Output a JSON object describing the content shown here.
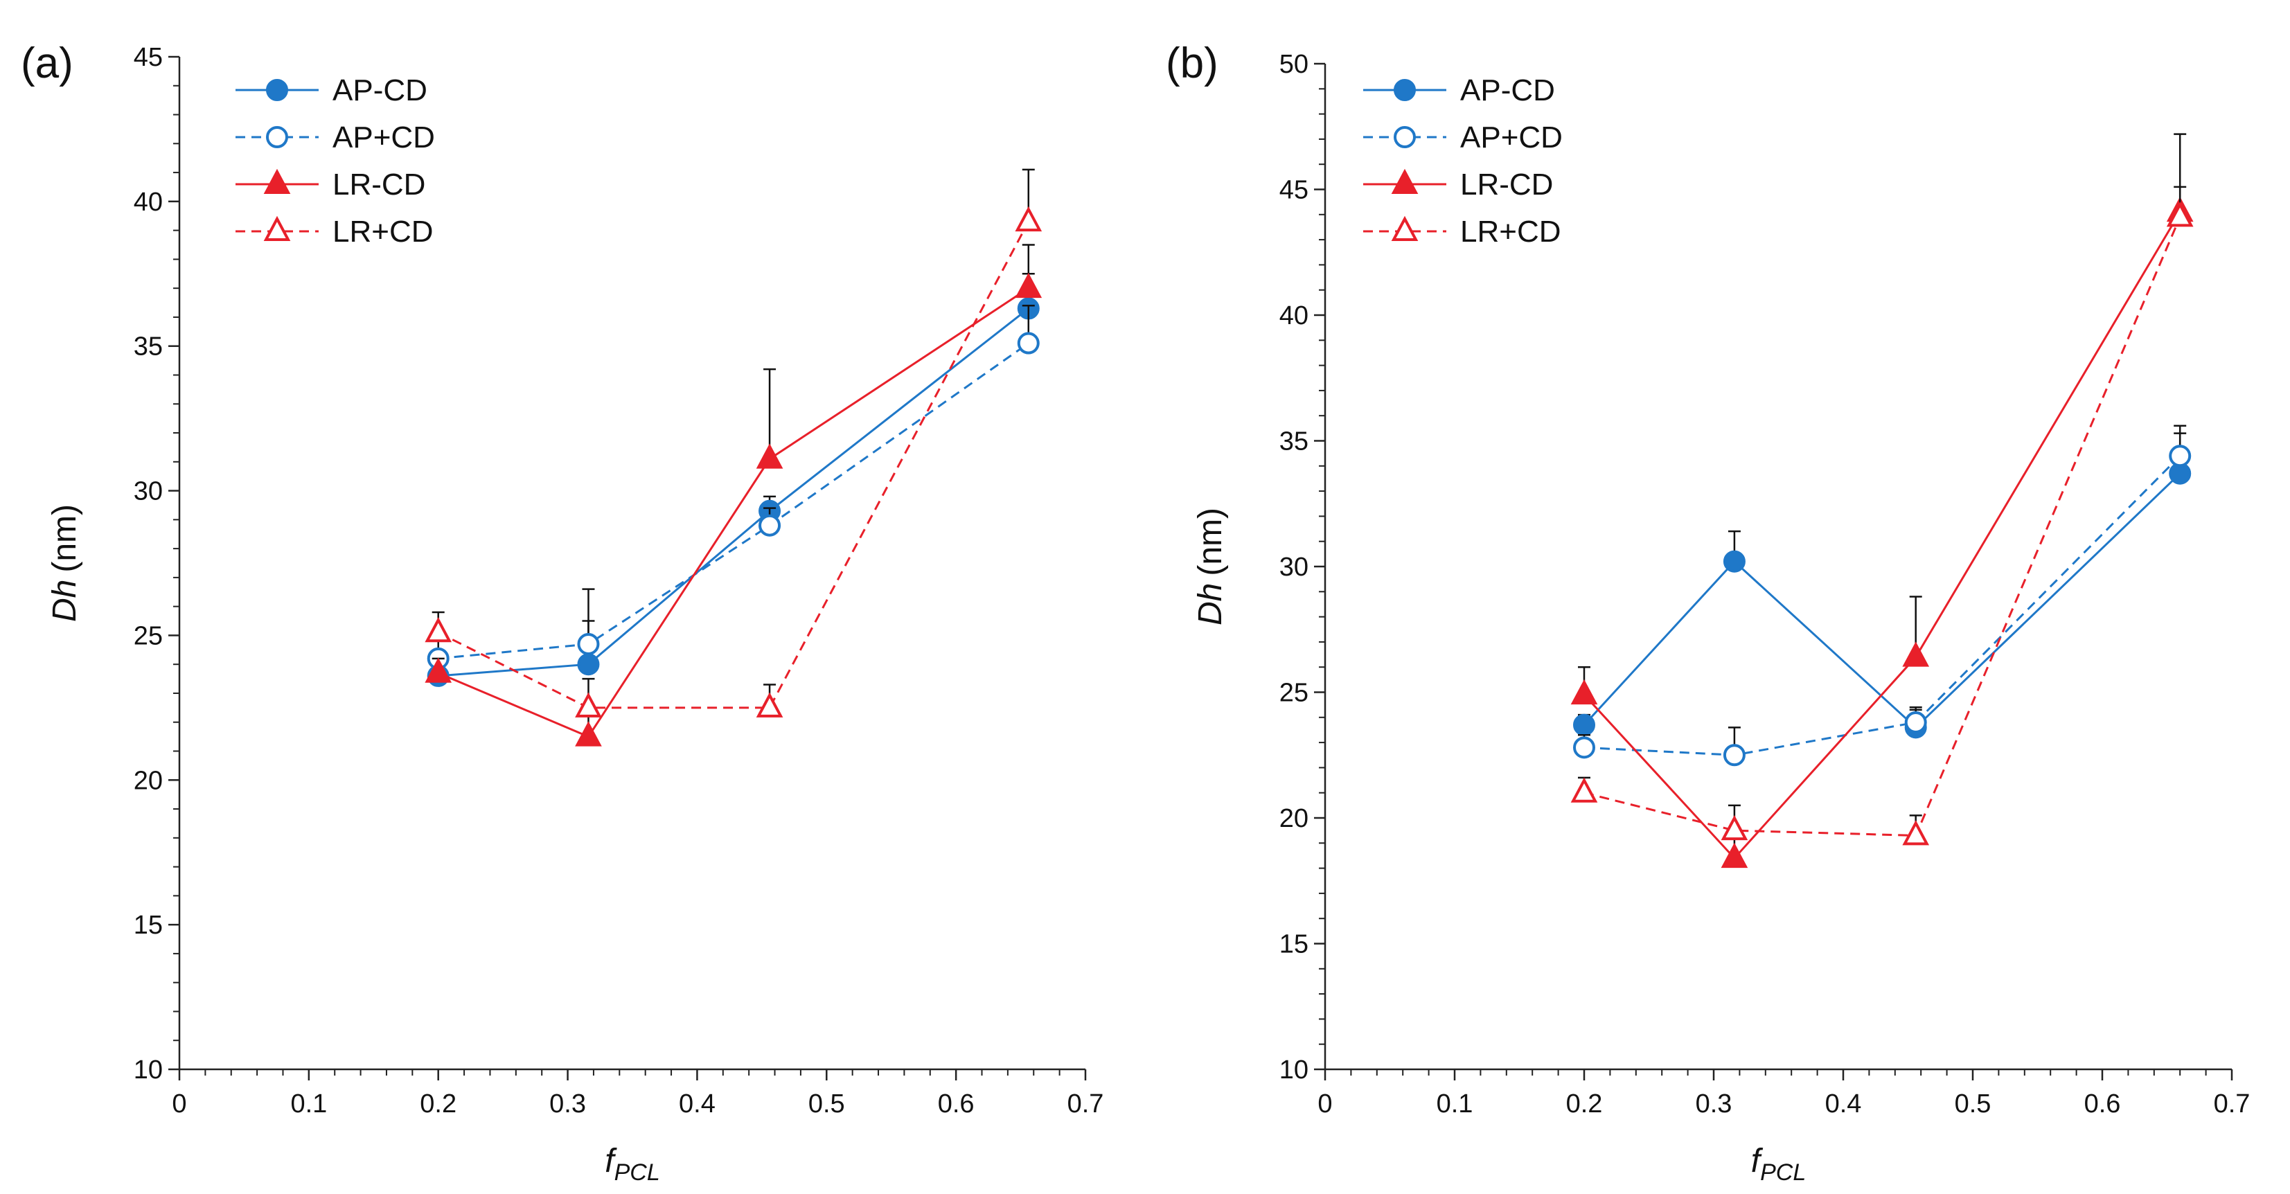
{
  "chart_data": [
    {
      "type": "line",
      "panel_label": "(a)",
      "title": "",
      "xlabel": "f",
      "xlabel_subscript": "PCL",
      "ylabel": "Dh",
      "ylabel_unit": "(nm)",
      "xlim": [
        0,
        0.7
      ],
      "ylim": [
        10,
        45
      ],
      "xticks": [
        0,
        0.1,
        0.2,
        0.3,
        0.4,
        0.5,
        0.6,
        0.7
      ],
      "xtick_labels": [
        "0",
        "0.1",
        "0.2",
        "0.3",
        "0.4",
        "0.5",
        "0.6",
        "0.7"
      ],
      "yticks": [
        10,
        15,
        20,
        25,
        30,
        35,
        40,
        45
      ],
      "ytick_labels": [
        "10",
        "15",
        "20",
        "25",
        "30",
        "35",
        "40",
        "45"
      ],
      "grid": false,
      "legend_position": "top-left",
      "series": [
        {
          "name": "AP-CD",
          "color": "#1f78c8",
          "line": "solid",
          "marker": "circle",
          "filled": true,
          "x": [
            0.2,
            0.316,
            0.456,
            0.656
          ],
          "y": [
            23.6,
            24.0,
            29.3,
            36.3
          ],
          "err": [
            0.4,
            1.5,
            0.5,
            1.2
          ]
        },
        {
          "name": "AP+CD",
          "color": "#1f78c8",
          "line": "dashed",
          "marker": "circle",
          "filled": false,
          "x": [
            0.2,
            0.316,
            0.456,
            0.656
          ],
          "y": [
            24.2,
            24.7,
            28.8,
            35.1
          ],
          "err": [
            0.8,
            1.9,
            0.6,
            1.3
          ]
        },
        {
          "name": "LR-CD",
          "color": "#e8202a",
          "line": "solid",
          "marker": "triangle",
          "filled": true,
          "x": [
            0.2,
            0.316,
            0.456,
            0.656
          ],
          "y": [
            23.7,
            21.5,
            31.1,
            37.0
          ],
          "err": [
            0.5,
            0.8,
            3.1,
            1.5
          ]
        },
        {
          "name": "LR+CD",
          "color": "#e8202a",
          "line": "dashed",
          "marker": "triangle",
          "filled": false,
          "x": [
            0.2,
            0.316,
            0.456,
            0.656
          ],
          "y": [
            25.1,
            22.5,
            22.5,
            39.3
          ],
          "err": [
            0.7,
            1.0,
            0.8,
            1.8
          ]
        }
      ]
    },
    {
      "type": "line",
      "panel_label": "(b)",
      "title": "",
      "xlabel": "f",
      "xlabel_subscript": "PCL",
      "ylabel": "Dh",
      "ylabel_unit": "(nm)",
      "xlim": [
        0,
        0.7
      ],
      "ylim": [
        10,
        50
      ],
      "xticks": [
        0,
        0.1,
        0.2,
        0.3,
        0.4,
        0.5,
        0.6,
        0.7
      ],
      "xtick_labels": [
        "0",
        "0.1",
        "0.2",
        "0.3",
        "0.4",
        "0.5",
        "0.6",
        "0.7"
      ],
      "yticks": [
        10,
        15,
        20,
        25,
        30,
        35,
        40,
        45,
        50
      ],
      "ytick_labels": [
        "10",
        "15",
        "20",
        "25",
        "30",
        "35",
        "40",
        "45",
        "50"
      ],
      "grid": false,
      "legend_position": "top-left",
      "series": [
        {
          "name": "AP-CD",
          "color": "#1f78c8",
          "line": "solid",
          "marker": "circle",
          "filled": true,
          "x": [
            0.2,
            0.316,
            0.456,
            0.66
          ],
          "y": [
            23.7,
            30.2,
            23.6,
            33.7
          ],
          "err": [
            0.4,
            1.2,
            0.7,
            1.6
          ]
        },
        {
          "name": "AP+CD",
          "color": "#1f78c8",
          "line": "dashed",
          "marker": "circle",
          "filled": false,
          "x": [
            0.2,
            0.316,
            0.456,
            0.66
          ],
          "y": [
            22.8,
            22.5,
            23.8,
            34.4
          ],
          "err": [
            0.5,
            1.1,
            0.6,
            1.2
          ]
        },
        {
          "name": "LR-CD",
          "color": "#e8202a",
          "line": "solid",
          "marker": "triangle",
          "filled": true,
          "x": [
            0.2,
            0.316,
            0.456,
            0.66
          ],
          "y": [
            24.9,
            18.4,
            26.4,
            44.1
          ],
          "err": [
            1.1,
            1.0,
            2.4,
            3.1
          ]
        },
        {
          "name": "LR+CD",
          "color": "#e8202a",
          "line": "dashed",
          "marker": "triangle",
          "filled": false,
          "x": [
            0.2,
            0.316,
            0.456,
            0.66
          ],
          "y": [
            21.0,
            19.5,
            19.3,
            43.9
          ],
          "err": [
            0.6,
            1.0,
            0.8,
            1.2
          ]
        }
      ]
    }
  ]
}
